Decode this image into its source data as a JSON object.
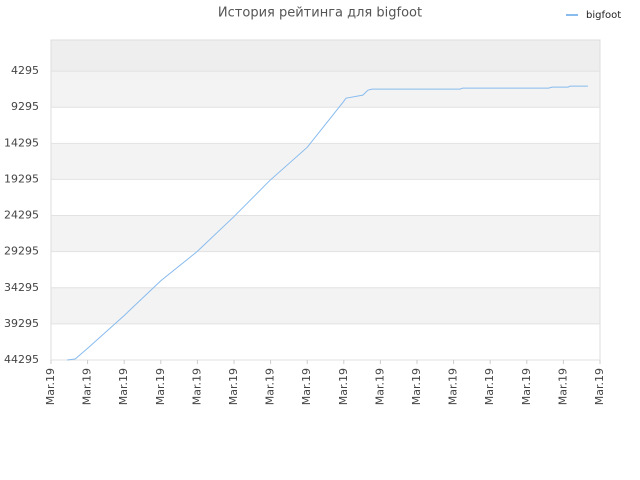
{
  "chart_data": {
    "type": "line",
    "title": "История рейтинга для bigfoot",
    "x": [
      0.44,
      0.66,
      1.01,
      1.99,
      3.0,
      3.99,
      5.0,
      5.98,
      7.0,
      7.98,
      8.06,
      8.52,
      8.66,
      8.77,
      11.17,
      11.25,
      13.6,
      13.69,
      14.13,
      14.18,
      14.67
    ],
    "series": [
      {
        "name": "bigfoot",
        "color": "#88bbee",
        "values": [
          44295,
          44156,
          42628,
          38184,
          33322,
          29295,
          24434,
          19434,
          14851,
          8601,
          8045,
          7628,
          6934,
          6795,
          6795,
          6656,
          6656,
          6517,
          6517,
          6378,
          6378
        ]
      }
    ],
    "xlim": [
      0,
      15
    ],
    "xticks": [
      {
        "value": 0,
        "label": "Mar.19"
      },
      {
        "value": 1,
        "label": "Mar.19"
      },
      {
        "value": 2,
        "label": "Mar.19"
      },
      {
        "value": 3,
        "label": "Mar.19"
      },
      {
        "value": 4,
        "label": "Mar.19"
      },
      {
        "value": 5,
        "label": "Mar.19"
      },
      {
        "value": 6,
        "label": "Mar.19"
      },
      {
        "value": 7,
        "label": "Mar.19"
      },
      {
        "value": 8,
        "label": "Mar.19"
      },
      {
        "value": 9,
        "label": "Mar.19"
      },
      {
        "value": 10,
        "label": "Mar.19"
      },
      {
        "value": 11,
        "label": "Mar.19"
      },
      {
        "value": 12,
        "label": "Mar.19"
      },
      {
        "value": 13,
        "label": "Mar.19"
      },
      {
        "value": 14,
        "label": "Mar.19"
      },
      {
        "value": 15,
        "label": "Mar.19"
      }
    ],
    "ylim": [
      44295,
      -10
    ],
    "yticks": [
      4295,
      9295,
      14295,
      19295,
      24295,
      29295,
      34295,
      39295,
      44295
    ],
    "grid": true,
    "legend": "top-right"
  }
}
